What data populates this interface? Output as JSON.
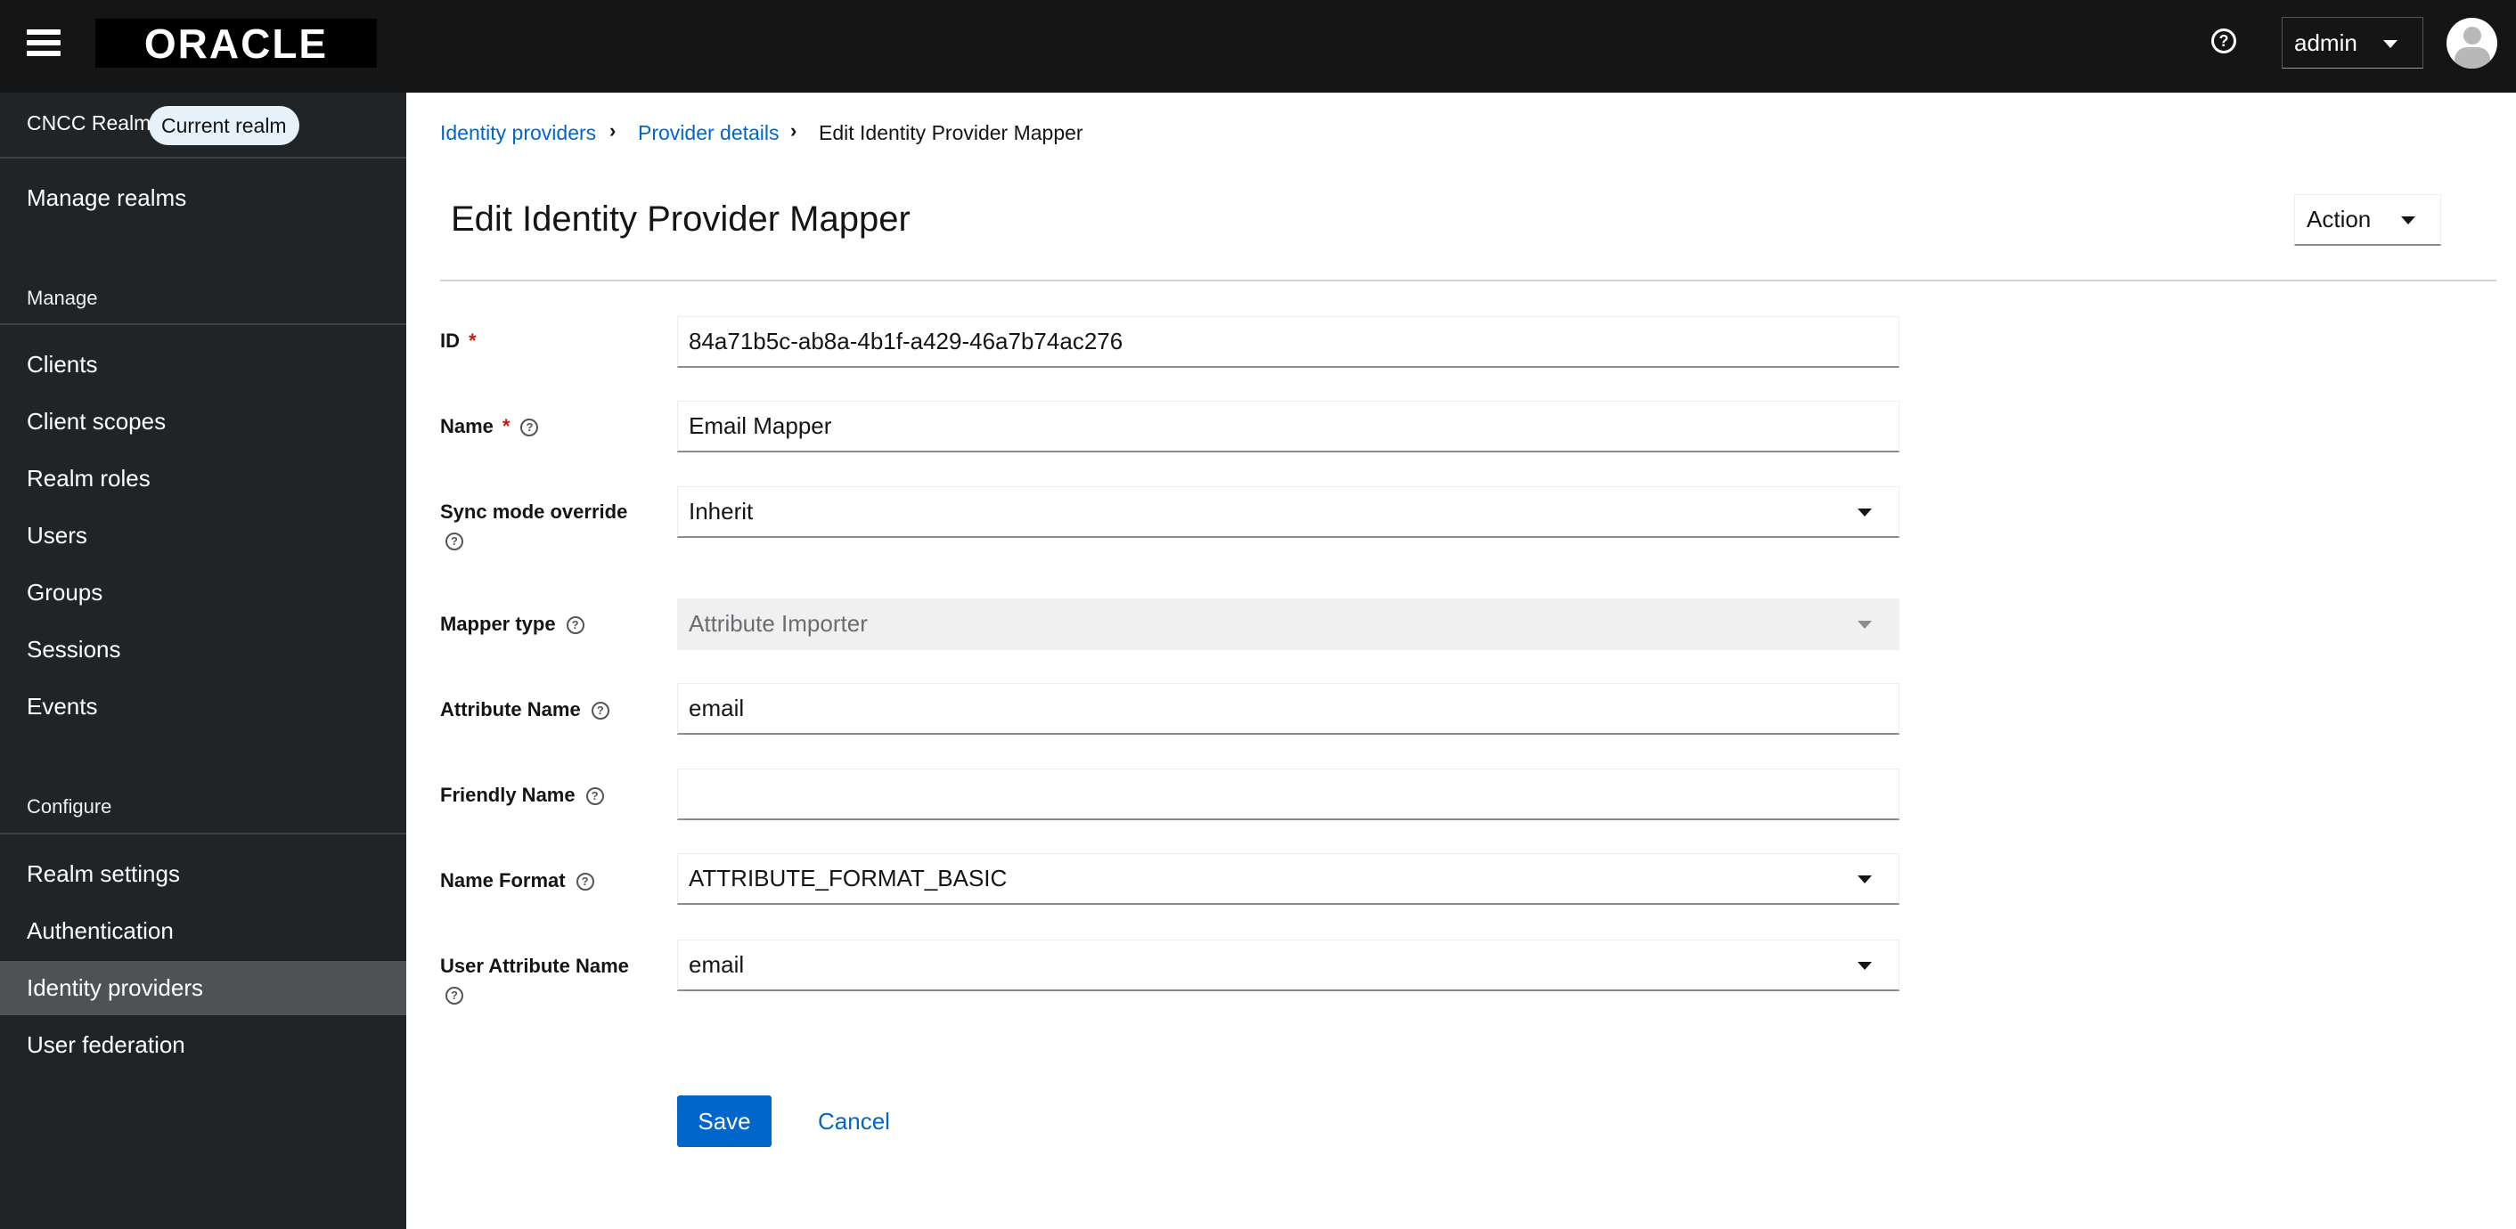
{
  "header": {
    "logo": "ORACLE",
    "user": "admin",
    "icons": [
      "hamburger-icon",
      "help-icon",
      "avatar-icon"
    ]
  },
  "sidebar": {
    "realm": "CNCC Realm",
    "realm_badge": "Current realm",
    "manage_realms": "Manage realms",
    "manage_heading": "Manage",
    "manage_items": [
      "Clients",
      "Client scopes",
      "Realm roles",
      "Users",
      "Groups",
      "Sessions",
      "Events"
    ],
    "configure_heading": "Configure",
    "configure_items": [
      "Realm settings",
      "Authentication",
      "Identity providers",
      "User federation"
    ],
    "active": "Identity providers"
  },
  "breadcrumb": [
    "Identity providers",
    "Provider details",
    "Edit Identity Provider Mapper"
  ],
  "page": {
    "title": "Edit Identity Provider Mapper",
    "action": "Action"
  },
  "form": {
    "id": {
      "label": "ID",
      "value": "84a71b5c-ab8a-4b1f-a429-46a7b74ac276"
    },
    "name": {
      "label": "Name",
      "value": "Email Mapper"
    },
    "sync": {
      "label": "Sync mode override",
      "value": "Inherit"
    },
    "mapper_type": {
      "label": "Mapper type",
      "value": "Attribute Importer"
    },
    "attribute_name": {
      "label": "Attribute Name",
      "value": "email"
    },
    "friendly_name": {
      "label": "Friendly Name",
      "value": ""
    },
    "name_format": {
      "label": "Name Format",
      "value": "ATTRIBUTE_FORMAT_BASIC"
    },
    "user_attribute": {
      "label": "User Attribute Name",
      "value": "email"
    },
    "required_mark": "*",
    "help": "?"
  },
  "buttons": {
    "save": "Save",
    "cancel": "Cancel"
  },
  "colors": {
    "header": "#151515",
    "sidebar": "#212427",
    "primary": "#0066cc"
  }
}
